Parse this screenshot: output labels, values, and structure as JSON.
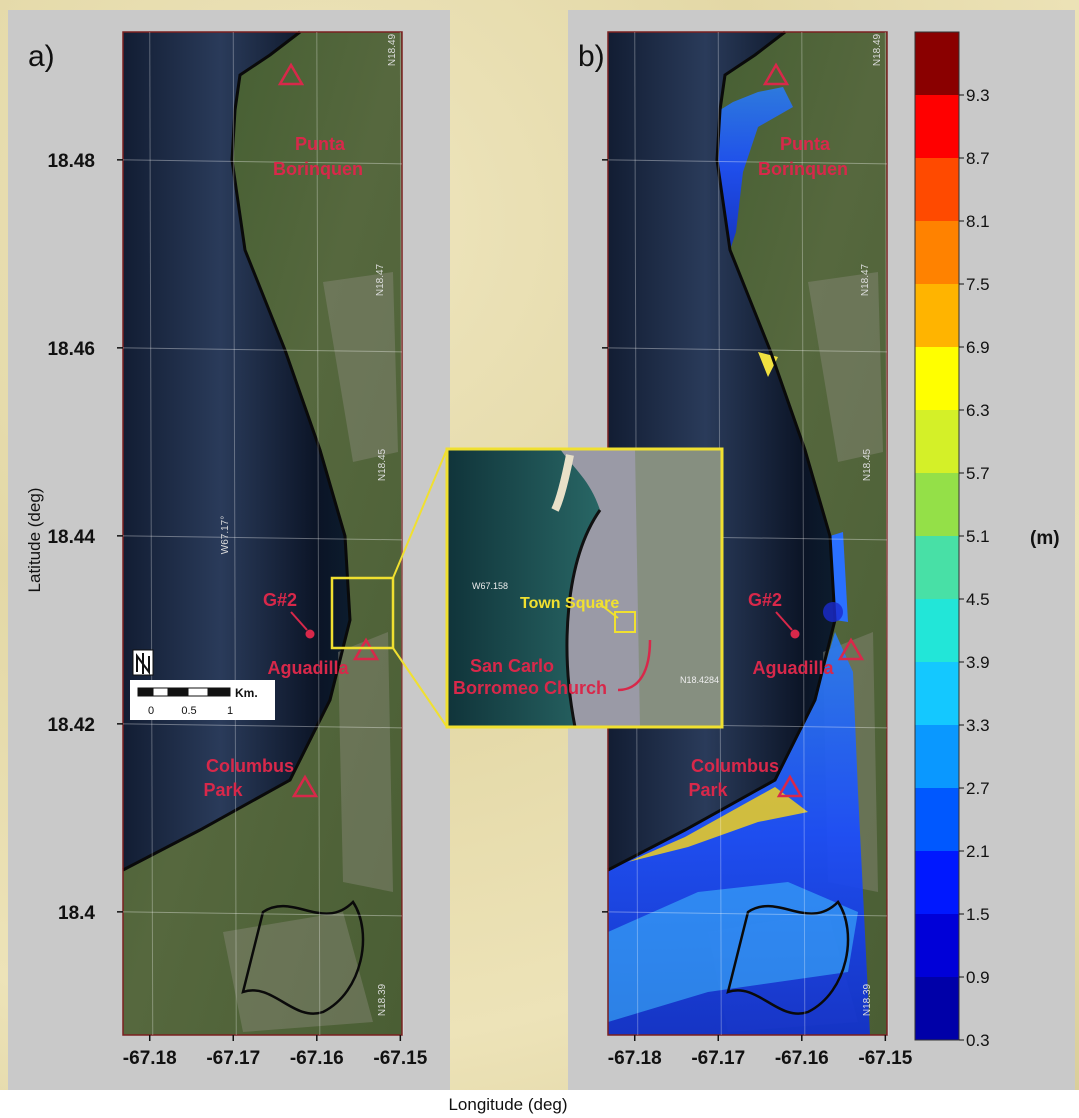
{
  "axes": {
    "x_label": "Longitude (deg)",
    "y_label": "Latitude (deg)",
    "xlim": [
      -67.1832,
      -67.1498
    ],
    "ylim": [
      18.3869,
      18.4936
    ],
    "xticks": [
      -67.18,
      -67.17,
      -67.16,
      -67.15
    ],
    "yticks": [
      18.48,
      18.46,
      18.44,
      18.42,
      18.4
    ]
  },
  "panels": [
    {
      "tag": "a)",
      "punta": [
        "Punta",
        "Borinquen"
      ],
      "g2": "G#2",
      "aguadilla": "Aguadilla",
      "columbus": [
        "Columbus",
        "Park"
      ],
      "grid_labels": [
        "N18.49",
        "N18.47",
        "N18.45",
        "N18.39",
        "W67.17°"
      ],
      "inundation": false
    },
    {
      "tag": "b)",
      "punta": [
        "Punta",
        "Borinquen"
      ],
      "g2": "G#2",
      "aguadilla": "Aguadilla",
      "columbus": [
        "Columbus",
        "Park"
      ],
      "grid_labels": [
        "N18.49",
        "N18.47",
        "N18.45",
        "N18.39"
      ],
      "inundation": true
    }
  ],
  "scale_bar": {
    "unit": "Km.",
    "labels": [
      "0",
      "0.5",
      "1"
    ]
  },
  "inset": {
    "grid_labels": [
      "W67.158",
      "N18.4284"
    ],
    "town_square": "Town Square",
    "church": [
      "San Carlo",
      "Borromeo Church"
    ]
  },
  "colorbar": {
    "unit": "(m)",
    "lim": [
      0.3,
      9.9
    ],
    "ticks": [
      0.3,
      0.9,
      1.5,
      2.1,
      2.7,
      3.3,
      3.9,
      4.5,
      5.1,
      5.7,
      6.3,
      6.9,
      7.5,
      8.1,
      8.7,
      9.3
    ],
    "colors": [
      "#0000a8",
      "#0000d8",
      "#0018ff",
      "#0058ff",
      "#0a98ff",
      "#14c8ff",
      "#22e6d8",
      "#48e0a6",
      "#94e048",
      "#d4f028",
      "#ffff00",
      "#ffb400",
      "#ff8200",
      "#ff4a00",
      "#ff0000",
      "#8a0000"
    ]
  }
}
